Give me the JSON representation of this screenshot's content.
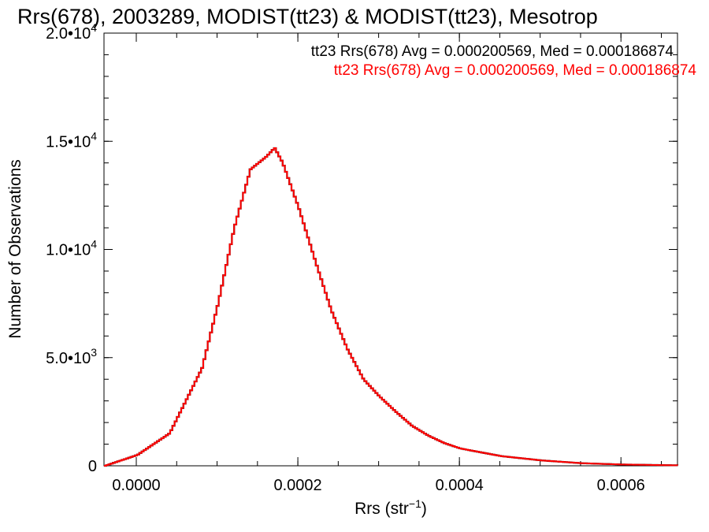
{
  "chart_data": {
    "type": "line",
    "step": true,
    "title": "Rrs(678), 2003289, MODIST(tt23) & MODIST(tt23), Mesotrop",
    "xlabel": "Rrs (str",
    "xlabel_sup": "−1",
    "xlabel_end": ")",
    "ylabel": "Number of Observations",
    "xlim": [
      -4e-05,
      0.00067
    ],
    "ylim": [
      0,
      20000
    ],
    "x_ticks": [
      {
        "value": 0.0,
        "label": "0.0000"
      },
      {
        "value": 0.0002,
        "label": "0.0002"
      },
      {
        "value": 0.0004,
        "label": "0.0004"
      },
      {
        "value": 0.0006,
        "label": "0.0006"
      }
    ],
    "y_ticks": [
      {
        "value": 0,
        "mantissa": "0",
        "exp": ""
      },
      {
        "value": 5000,
        "mantissa": "5.0•10",
        "exp": "3"
      },
      {
        "value": 10000,
        "mantissa": "1.0•10",
        "exp": "4"
      },
      {
        "value": 15000,
        "mantissa": "1.5•10",
        "exp": "4"
      },
      {
        "value": 20000,
        "mantissa": "2.0•10",
        "exp": "4"
      }
    ],
    "legend_position": "top-right",
    "series": [
      {
        "name": "tt23 Rrs(678) Avg = 0.000200569, Med = 0.000186874",
        "color": "#000000"
      },
      {
        "name": "tt23 Rrs(678) Avg = 0.000200569, Med = 0.000186874",
        "color": "#ff0000"
      }
    ],
    "x": [
      -4e-05,
      0.0,
      4e-05,
      8e-05,
      0.0001,
      0.00012,
      0.00014,
      0.00016,
      0.00017,
      0.00018,
      0.0002,
      0.00022,
      0.00024,
      0.00026,
      0.00028,
      0.0003,
      0.00032,
      0.00034,
      0.00036,
      0.00038,
      0.0004,
      0.00045,
      0.0005,
      0.00055,
      0.0006,
      0.00067
    ],
    "y": [
      0,
      500,
      1500,
      4500,
      7500,
      11000,
      13700,
      14300,
      14700,
      14000,
      11900,
      9500,
      7200,
      5400,
      4000,
      3200,
      2500,
      1850,
      1400,
      1050,
      800,
      450,
      250,
      120,
      60,
      20
    ]
  }
}
